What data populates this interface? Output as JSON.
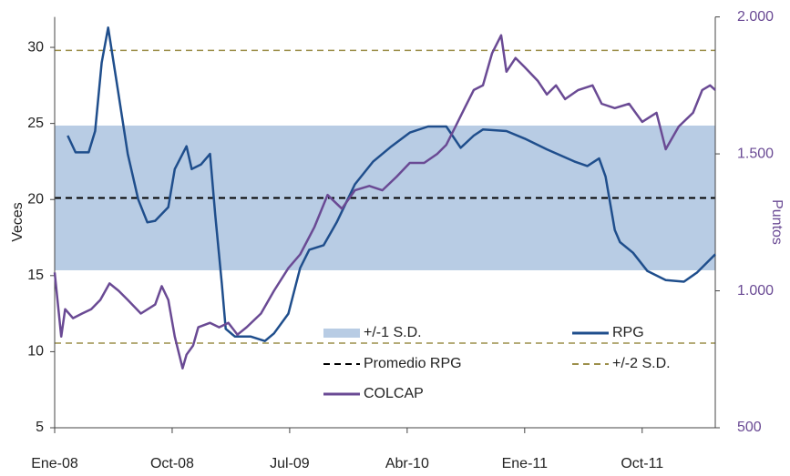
{
  "chart_data": {
    "type": "line",
    "y_label": "Veces",
    "y2_label": "Puntos",
    "xlim": [
      0,
      50.6
    ],
    "xticks": [
      {
        "value": 0,
        "label": "Ene-08"
      },
      {
        "value": 9,
        "label": "Oct-08"
      },
      {
        "value": 18,
        "label": "Jul-09"
      },
      {
        "value": 27,
        "label": "Abr-10"
      },
      {
        "value": 36,
        "label": "Ene-11"
      },
      {
        "value": 45,
        "label": "Oct-11"
      }
    ],
    "ylim": [
      5,
      32
    ],
    "yticks": [
      5,
      10,
      15,
      20,
      25,
      30
    ],
    "y2lim": [
      500,
      2000
    ],
    "y2ticks": [
      500,
      {
        "value": 1000,
        "label": "1.000"
      },
      {
        "value": 1500,
        "label": "1.500"
      },
      {
        "value": 2000,
        "label": "2.000"
      }
    ],
    "band": {
      "name": "+/-1 S.D.",
      "color": "#b8cce4",
      "values": [
        15.35,
        24.86
      ]
    },
    "mean_line": {
      "name": "Promedio RPG",
      "color": "#000000",
      "value": 20.1
    },
    "sd2_lines": {
      "name": "+/-2 S.D.",
      "color": "#9c8f4a",
      "values": [
        10.56,
        29.8
      ]
    },
    "series": [
      {
        "name": "RPG",
        "color": "#1f4e8c",
        "x": [
          1,
          1.6,
          2.6,
          3.1,
          3.6,
          4.1,
          4.7,
          5.6,
          6.4,
          7.1,
          7.7,
          8.7,
          9.2,
          10.1,
          10.5,
          11.2,
          11.9,
          12.3,
          12.8,
          13.1,
          13.8,
          15,
          16.1,
          16.8,
          17.9,
          18.8,
          19.5,
          20.6,
          21.6,
          23,
          24.4,
          25.8,
          27.2,
          28.6,
          30,
          31.1,
          32.1,
          32.8,
          34.6,
          36,
          37.7,
          39.8,
          40.8,
          41.7,
          42.2,
          42.9,
          43.3,
          44.3,
          45.4,
          46.8,
          48.2,
          49.2,
          49.9,
          50.6
        ],
        "values": [
          24.2,
          23.1,
          23.1,
          24.5,
          29,
          31.3,
          28,
          23,
          20,
          18.5,
          18.6,
          19.5,
          22,
          23.5,
          22,
          22.3,
          23,
          19,
          14.5,
          11.5,
          11,
          11,
          10.7,
          11.2,
          12.5,
          15.5,
          16.7,
          17,
          18.5,
          21,
          22.5,
          23.5,
          24.4,
          24.8,
          24.8,
          23.4,
          24.2,
          24.6,
          24.5,
          24,
          23.3,
          22.5,
          22.2,
          22.7,
          21.5,
          18,
          17.2,
          16.5,
          15.3,
          14.7,
          14.6,
          15.2,
          15.8,
          16.4
        ]
      },
      {
        "name": "COLCAP",
        "color": "#6a4a94",
        "axis": "y2",
        "x": [
          0,
          0.5,
          0.8,
          1.4,
          2.1,
          2.8,
          3.5,
          4.2,
          4.9,
          5.6,
          6.6,
          7.7,
          8.2,
          8.7,
          9.2,
          9.8,
          10.1,
          10.6,
          11,
          11.9,
          12.6,
          13.3,
          14,
          14.7,
          15.8,
          16.8,
          17.9,
          18.8,
          19.9,
          20.9,
          22,
          23,
          24.1,
          25.1,
          26.2,
          27.2,
          28.3,
          29.3,
          30,
          30.7,
          31.4,
          32.1,
          32.8,
          33.5,
          34.2,
          34.6,
          35.3,
          36,
          37,
          37.7,
          38.4,
          39.1,
          40.1,
          41.2,
          41.9,
          42.9,
          44,
          45,
          46.1,
          46.8,
          47.8,
          48.9,
          49.6,
          50.2,
          50.6
        ],
        "values": [
          1067,
          833,
          933,
          900,
          917,
          933,
          967,
          1027,
          1000,
          967,
          917,
          950,
          1017,
          967,
          833,
          717,
          767,
          800,
          867,
          883,
          867,
          883,
          840,
          867,
          917,
          1000,
          1083,
          1133,
          1233,
          1350,
          1300,
          1367,
          1383,
          1367,
          1417,
          1467,
          1467,
          1500,
          1533,
          1600,
          1667,
          1733,
          1750,
          1867,
          1933,
          1800,
          1850,
          1817,
          1767,
          1717,
          1750,
          1700,
          1733,
          1750,
          1683,
          1667,
          1683,
          1617,
          1650,
          1517,
          1600,
          1650,
          1733,
          1750,
          1733
        ]
      }
    ]
  }
}
